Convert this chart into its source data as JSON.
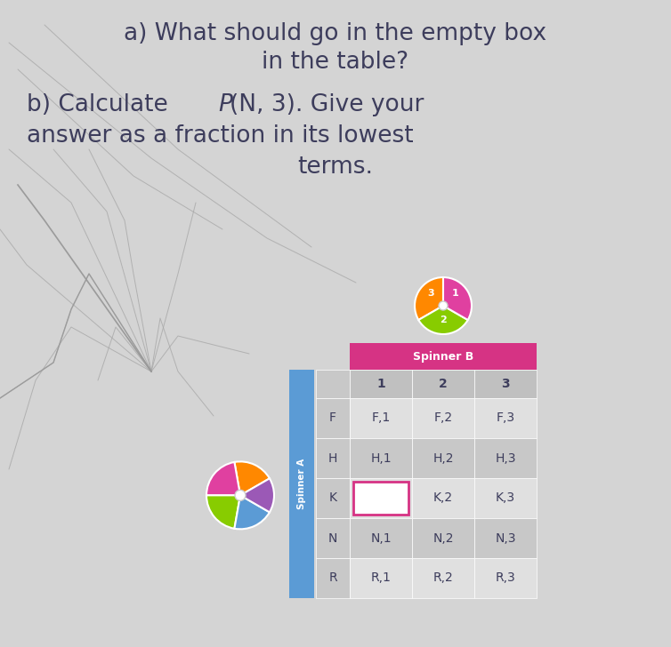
{
  "background_color": "#d4d4d4",
  "text_color": "#3d3d5c",
  "line1": "a) What should go in the empty box",
  "line2": "in the table?",
  "line3a": "b) Calculate ",
  "line3b": "P",
  "line3c": "(N, 3). Give your",
  "line4": "answer as a fraction in its lowest",
  "line5": "terms.",
  "spinner_b_label": "Spinner B",
  "spinner_b_bg": "#d63384",
  "table_header": [
    "1",
    "2",
    "3"
  ],
  "table_rows": [
    {
      "label": "F",
      "cells": [
        "F,1",
        "F,2",
        "F,3"
      ]
    },
    {
      "label": "H",
      "cells": [
        "H,1",
        "H,2",
        "H,3"
      ]
    },
    {
      "label": "K",
      "cells": [
        "",
        "K,2",
        "K,3"
      ]
    },
    {
      "label": "N",
      "cells": [
        "N,1",
        "N,2",
        "N,3"
      ]
    },
    {
      "label": "R",
      "cells": [
        "R,1",
        "R,2",
        "R,3"
      ]
    }
  ],
  "empty_cell_border_color": "#d63384",
  "sidebar_color": "#5b9bd5",
  "cell_bg_light": "#e0e0e0",
  "cell_bg_dark": "#c8c8c8",
  "header_bg": "#c0c0c0"
}
